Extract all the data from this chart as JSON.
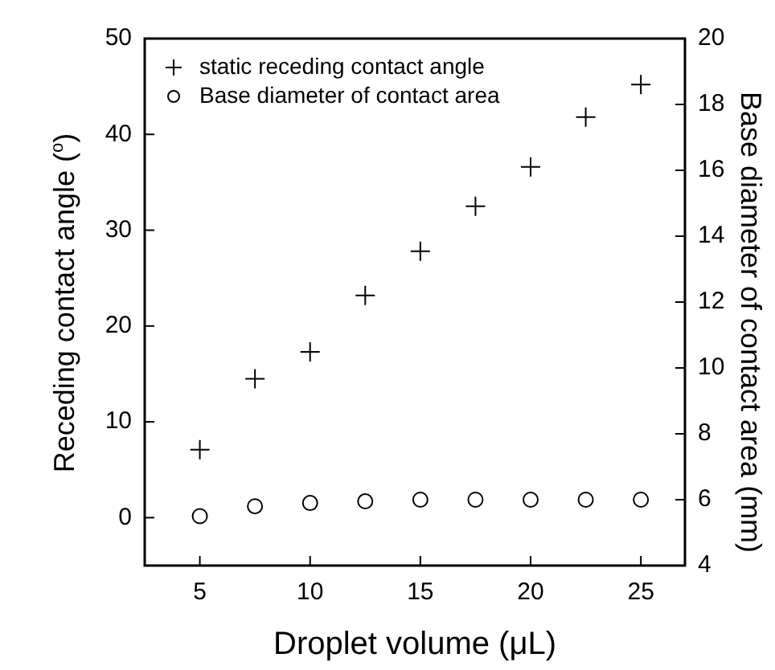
{
  "chart_data": {
    "type": "scatter",
    "xlabel": "Droplet volume (μL)",
    "ylabel": "Receding contact angle ($^{o}$)",
    "y2label": "Base diameter of contact area (mm)",
    "x": [
      5,
      7.5,
      10,
      12.5,
      15,
      17.5,
      20,
      22.5,
      25
    ],
    "series": [
      {
        "name": "static receding contact angle",
        "color": "#000000",
        "marker": "cross",
        "values": [
          7.1,
          14.5,
          17.3,
          23.2,
          27.8,
          32.5,
          36.6,
          41.8,
          45.2
        ]
      },
      {
        "name": "Base diameter of contact area",
        "color": "#000000",
        "marker": "circle",
        "axis": "y2",
        "values": [
          5.5,
          5.8,
          5.9,
          5.95,
          6.0,
          6.0,
          6.0,
          6.0,
          6.0
        ]
      }
    ],
    "xlim": [
      2.5,
      27
    ],
    "xticks": [
      5,
      10,
      15,
      20,
      25
    ],
    "ylim": [
      -5,
      50
    ],
    "yticks": [
      0,
      10,
      20,
      30,
      40,
      50
    ],
    "y2lim": [
      4,
      20
    ],
    "y2ticks": [
      4,
      6,
      8,
      10,
      12,
      14,
      16,
      18,
      20
    ],
    "grid": false,
    "legend": "top left"
  }
}
